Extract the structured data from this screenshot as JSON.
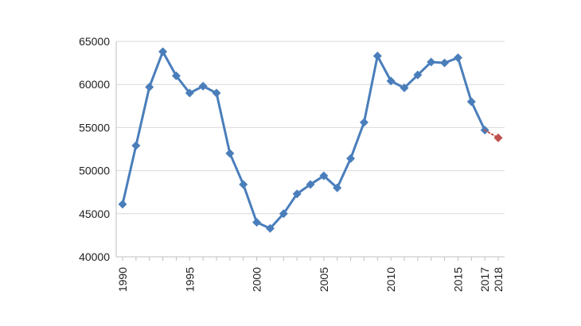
{
  "chart_data": {
    "type": "line",
    "title": "",
    "xlabel": "",
    "ylabel": "",
    "ylim": [
      40000,
      65000
    ],
    "yticks": [
      40000,
      45000,
      50000,
      55000,
      60000,
      65000
    ],
    "xlim": [
      1990,
      2018
    ],
    "xticks": [
      1990,
      1995,
      2000,
      2005,
      2010,
      2015,
      2017,
      2018
    ],
    "grid": true,
    "legend": "none",
    "series": [
      {
        "color": "#4a7ebb",
        "marker": "diamond",
        "line_style": "solid",
        "points": [
          {
            "x": 1990,
            "y": 46100
          },
          {
            "x": 1991,
            "y": 52900
          },
          {
            "x": 1992,
            "y": 59700
          },
          {
            "x": 1993,
            "y": 63800
          },
          {
            "x": 1994,
            "y": 61000
          },
          {
            "x": 1995,
            "y": 59000
          },
          {
            "x": 1996,
            "y": 59800
          },
          {
            "x": 1997,
            "y": 59000
          },
          {
            "x": 1998,
            "y": 52000
          },
          {
            "x": 1999,
            "y": 48400
          },
          {
            "x": 2000,
            "y": 44000
          },
          {
            "x": 2001,
            "y": 43300
          },
          {
            "x": 2002,
            "y": 45000
          },
          {
            "x": 2003,
            "y": 47300
          },
          {
            "x": 2004,
            "y": 48400
          },
          {
            "x": 2005,
            "y": 49400
          },
          {
            "x": 2006,
            "y": 48000
          },
          {
            "x": 2007,
            "y": 51400
          },
          {
            "x": 2008,
            "y": 55600
          },
          {
            "x": 2009,
            "y": 63300
          },
          {
            "x": 2010,
            "y": 60400
          },
          {
            "x": 2011,
            "y": 59600
          },
          {
            "x": 2012,
            "y": 61100
          },
          {
            "x": 2013,
            "y": 62600
          },
          {
            "x": 2014,
            "y": 62500
          },
          {
            "x": 2015,
            "y": 63100
          },
          {
            "x": 2016,
            "y": 58000
          },
          {
            "x": 2017,
            "y": 54700
          }
        ]
      },
      {
        "color": "#c0504d",
        "marker": "diamond",
        "line_style": "dotted",
        "points": [
          {
            "x": 2017,
            "y": 54700
          },
          {
            "x": 2018,
            "y": 53800
          }
        ]
      }
    ]
  }
}
